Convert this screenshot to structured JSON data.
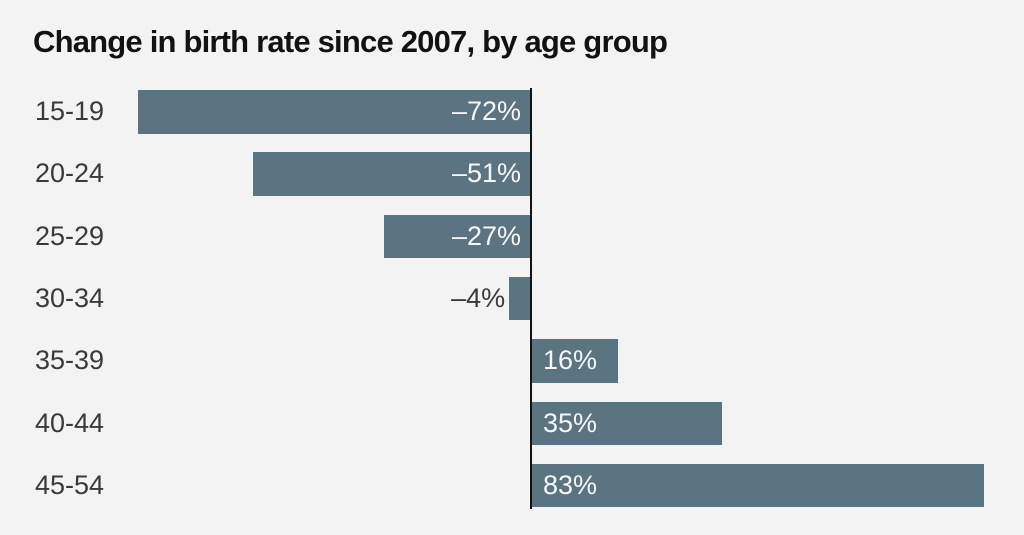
{
  "title": "Change in birth rate since 2007, by age group",
  "chart_data": {
    "type": "bar",
    "orientation": "horizontal",
    "title": "Change in birth rate since 2007, by age group",
    "xlabel": "",
    "ylabel": "",
    "categories": [
      "15-19",
      "20-24",
      "25-29",
      "30-34",
      "35-39",
      "40-44",
      "45-54"
    ],
    "values": [
      -72,
      -51,
      -27,
      -4,
      16,
      35,
      83
    ],
    "value_labels": [
      "–72%",
      "–51%",
      "–27%",
      "–4%",
      "16%",
      "35%",
      "83%"
    ],
    "unit": "percent change",
    "baseline": 0,
    "xlim": [
      -80,
      90
    ],
    "grid": false,
    "legend": "none",
    "value_label_placement": [
      "inside-end",
      "inside-end",
      "inside-end",
      "outside-end",
      "inside-start",
      "inside-start",
      "inside-start"
    ],
    "colors": {
      "bar": "#5a7481",
      "axis": "#121212",
      "background": "#f3f3f3",
      "title_text": "#121212",
      "category_text": "#3a3a3a",
      "label_inside": "#f7f7f7",
      "label_outside": "#3a3a3a"
    }
  }
}
